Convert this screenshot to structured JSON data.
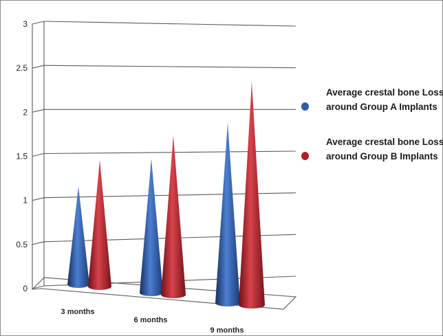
{
  "chart_data": {
    "type": "bar",
    "bar_shape": "cone-3d",
    "categories": [
      "3 months",
      "6 months",
      "9 months"
    ],
    "series": [
      {
        "name": "Average crestal bone Loss around Group A Implants",
        "values": [
          1.2,
          1.6,
          2.1
        ],
        "color": "#2f5da8"
      },
      {
        "name": "Average crestal bone Loss around Group B Implants",
        "values": [
          1.55,
          1.9,
          2.6
        ],
        "color": "#b0202a"
      }
    ],
    "ylim": [
      0,
      3
    ],
    "yticks": [
      "0",
      "0.5",
      "1",
      "1.5",
      "2",
      "2.5",
      "3"
    ],
    "grid": true,
    "legend": "right",
    "title": "",
    "xlabel": "",
    "ylabel": ""
  }
}
